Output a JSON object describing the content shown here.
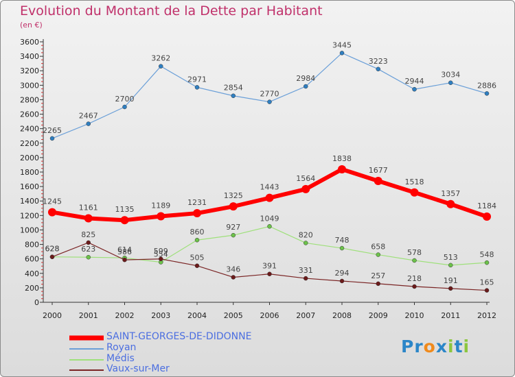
{
  "chart_data": {
    "type": "line",
    "title": "Evolution du Montant de la Dette par Habitant",
    "subtitle": "(en €)",
    "categories": [
      "2000",
      "2001",
      "2002",
      "2003",
      "2004",
      "2005",
      "2006",
      "2007",
      "2008",
      "2009",
      "2010",
      "2011",
      "2012"
    ],
    "ylim": [
      0,
      3600
    ],
    "yticks": [
      0,
      200,
      400,
      600,
      800,
      1000,
      1200,
      1400,
      1600,
      1800,
      2000,
      2200,
      2400,
      2600,
      2800,
      3000,
      3200,
      3400,
      3600
    ],
    "grid": false,
    "series": [
      {
        "name": "SAINT-GEORGES-DE-DIDONNE",
        "color": "#ff0000",
        "marker": "#ff0000",
        "width": 6,
        "legend_width": 7,
        "values": [
          1245,
          1161,
          1135,
          1189,
          1231,
          1325,
          1443,
          1564,
          1838,
          1677,
          1518,
          1357,
          1184
        ],
        "labels": [
          "1245",
          "1161",
          "1135",
          "1189",
          "1231",
          "1325",
          "1443",
          "1564",
          "1838",
          "1677",
          "1518",
          "1357",
          "1184"
        ]
      },
      {
        "name": "Royan",
        "color": "#6a9fd8",
        "marker": "#2f7fc1",
        "width": 1.2,
        "legend_width": 2,
        "values": [
          2265,
          2467,
          2700,
          3262,
          2971,
          2854,
          2770,
          2984,
          3445,
          3223,
          2944,
          3034,
          2886
        ],
        "labels": [
          "2265",
          "2467",
          "2700",
          "3262",
          "2971",
          "2854",
          "2770",
          "2984",
          "3445",
          "3223",
          "2944",
          "3034",
          "2886"
        ]
      },
      {
        "name": "Médis",
        "color": "#9ee07a",
        "marker": "#6cc24a",
        "width": 1.2,
        "legend_width": 2,
        "values": [
          628,
          623,
          614,
          554,
          860,
          927,
          1049,
          820,
          748,
          658,
          578,
          513,
          548
        ],
        "labels": [
          "628",
          "623",
          "614",
          "554",
          "860",
          "927",
          "1049",
          "820",
          "748",
          "658",
          "578",
          "513",
          "548"
        ]
      },
      {
        "name": "Vaux-sur-Mer",
        "color": "#7a2424",
        "marker": "#6b1a1a",
        "width": 1.2,
        "legend_width": 2,
        "values": [
          628,
          825,
          586,
          599,
          505,
          346,
          391,
          331,
          294,
          257,
          218,
          191,
          165
        ],
        "labels": [
          "628",
          "825",
          "586",
          "599",
          "505",
          "346",
          "391",
          "331",
          "294",
          "257",
          "218",
          "191",
          "165"
        ]
      }
    ]
  },
  "logo": {
    "letters": [
      "P",
      "r",
      "o",
      "x",
      "i",
      "t",
      "i"
    ],
    "colors": [
      "#2b86c8",
      "#2b86c8",
      "#f08a1c",
      "#2b86c8",
      "#8cc63f",
      "#2b86c8",
      "#8cc63f"
    ]
  }
}
